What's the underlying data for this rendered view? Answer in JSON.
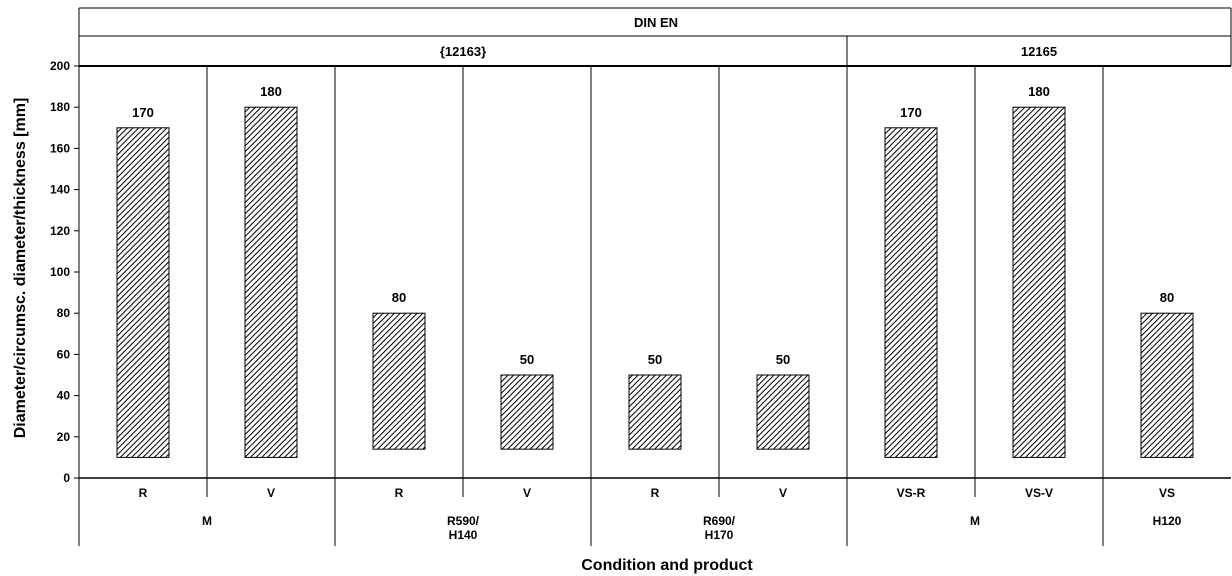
{
  "chart_data": {
    "type": "bar",
    "title": "DIN EN",
    "xlabel": "Condition and product",
    "ylabel": "Diameter/circumsc. diameter/thickness [mm]",
    "ylim": [
      0,
      200
    ],
    "yticks": [
      0,
      20,
      40,
      60,
      80,
      100,
      120,
      140,
      160,
      180,
      200
    ],
    "grid": false,
    "standards": [
      {
        "label": "{12163}",
        "span": [
          0,
          6
        ]
      },
      {
        "label": "12165",
        "span": [
          6,
          9
        ]
      }
    ],
    "conditions": [
      {
        "label": "M",
        "span": [
          0,
          2
        ]
      },
      {
        "label": "R590/\nH140",
        "span": [
          2,
          4
        ]
      },
      {
        "label": "R690/\nH170",
        "span": [
          4,
          6
        ]
      },
      {
        "label": "M",
        "span": [
          6,
          8
        ]
      },
      {
        "label": "H120",
        "span": [
          8,
          9
        ]
      }
    ],
    "categories": [
      "R",
      "V",
      "R",
      "V",
      "R",
      "V",
      "VS-R",
      "VS-V",
      "VS"
    ],
    "values": [
      170,
      180,
      80,
      50,
      50,
      50,
      170,
      180,
      80
    ],
    "bar_base": [
      10,
      10,
      14,
      14,
      14,
      14,
      10,
      10,
      10
    ],
    "data_labels": [
      "170",
      "180",
      "80",
      "50",
      "50",
      "50",
      "170",
      "180",
      "80"
    ]
  }
}
